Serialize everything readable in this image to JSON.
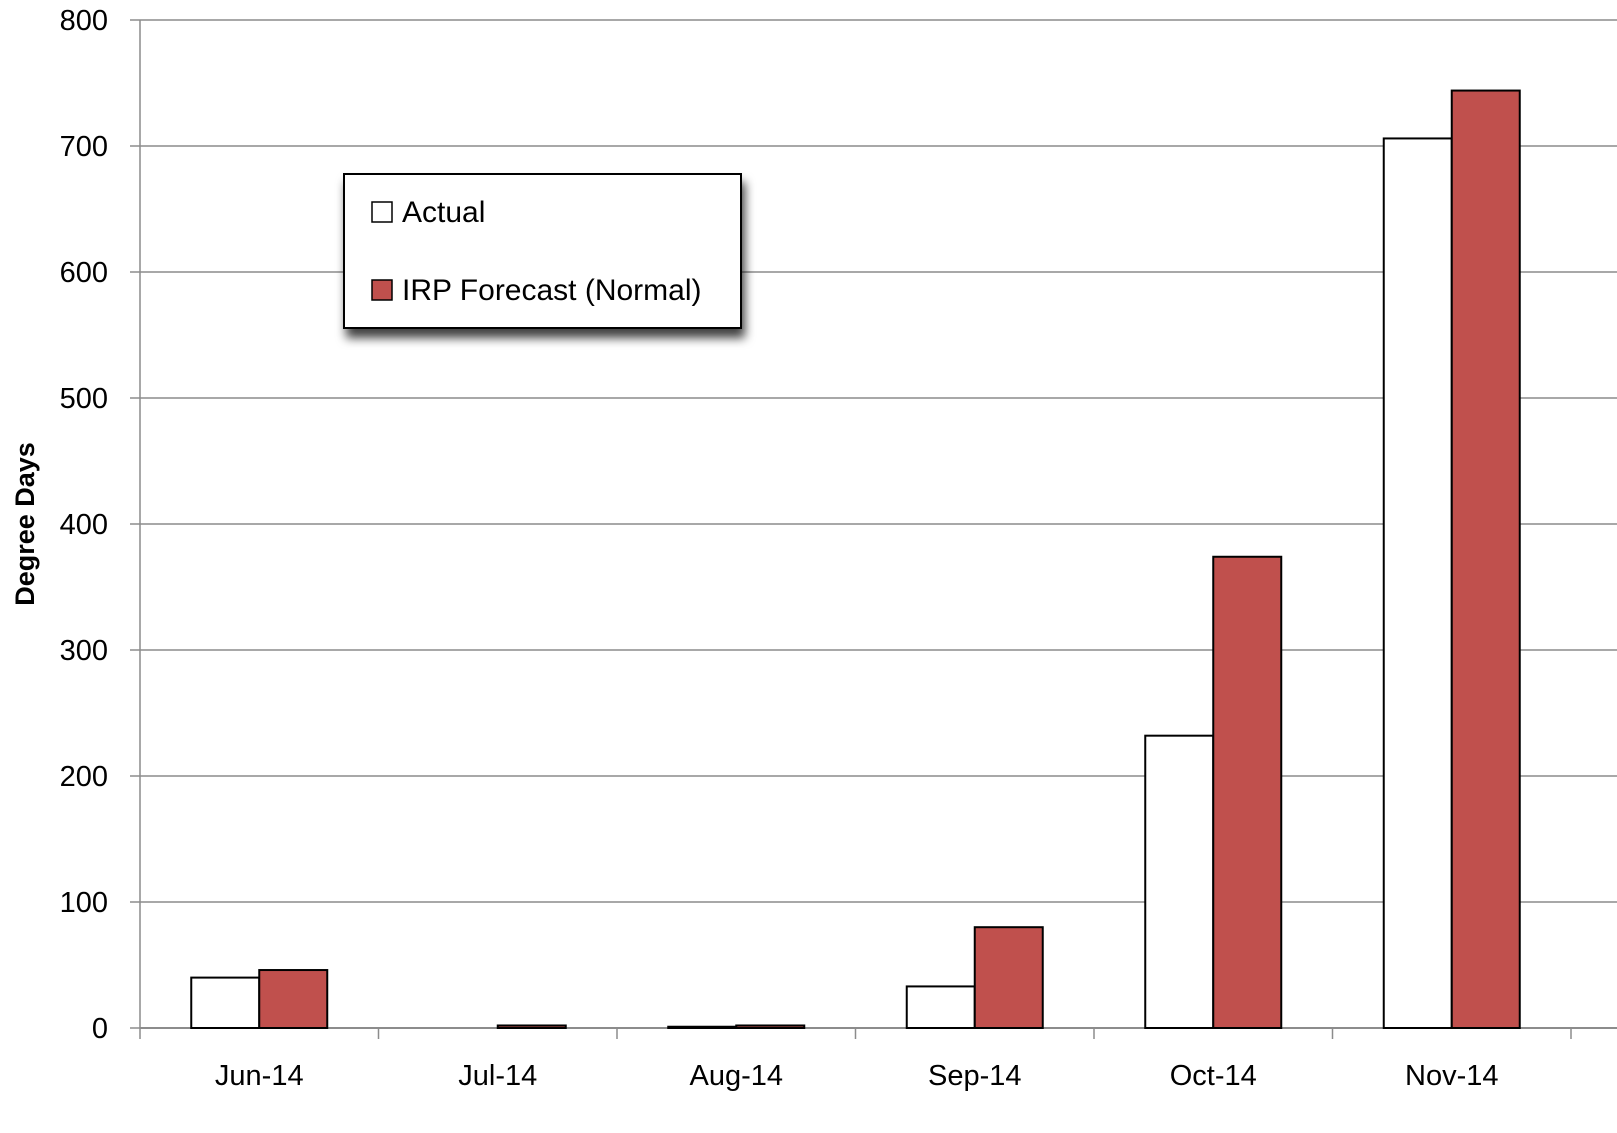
{
  "chart_data": {
    "type": "bar",
    "title": "",
    "xlabel": "",
    "ylabel": "Degree Days",
    "categories": [
      "Jun-14",
      "Jul-14",
      "Aug-14",
      "Sep-14",
      "Oct-14",
      "Nov-14"
    ],
    "series": [
      {
        "name": "Actual",
        "color": "#ffffff",
        "values": [
          40,
          0,
          1,
          33,
          232,
          706
        ]
      },
      {
        "name": "IRP Forecast (Normal)",
        "color": "#c0504d",
        "values": [
          46,
          2,
          2,
          80,
          374,
          744
        ]
      }
    ],
    "ylim": [
      0,
      800
    ],
    "y_ticks": [
      "0",
      "100",
      "200",
      "300",
      "400",
      "500",
      "600",
      "700",
      "800"
    ],
    "grid": true,
    "legend_position": "top-left"
  }
}
